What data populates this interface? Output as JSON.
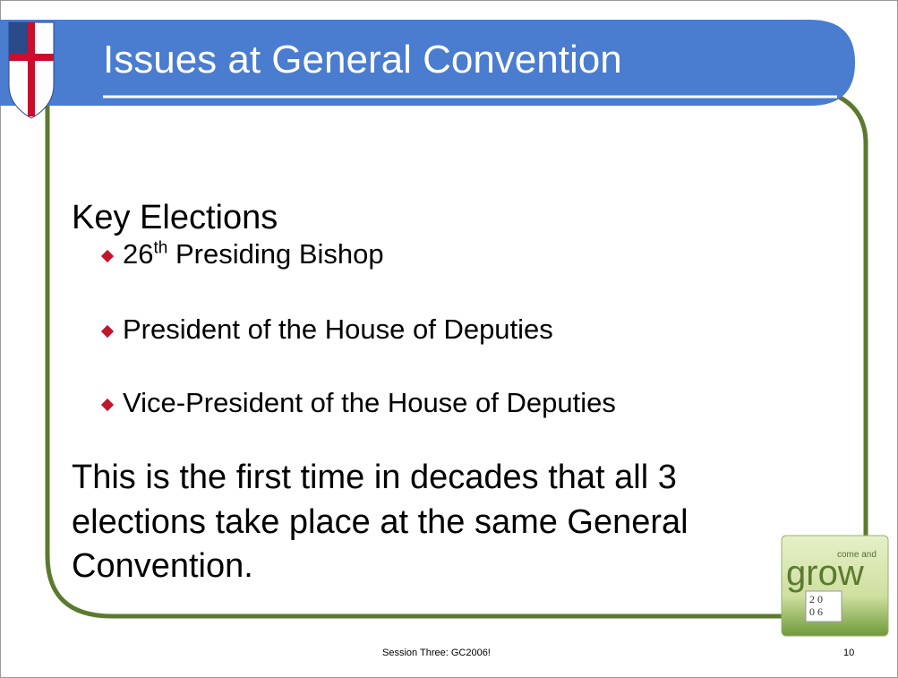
{
  "header": {
    "title": "Issues at General Convention"
  },
  "content": {
    "heading": "Key Elections",
    "bullets": [
      {
        "number": "26",
        "suffix": "th",
        "text": "Presiding Bishop"
      },
      {
        "text": "President of the House of Deputies"
      },
      {
        "text": "Vice-President of the House of Deputies"
      }
    ],
    "paragraph_lines": [
      "This is the first time in decades that all 3",
      "elections take place at the same General",
      "Convention."
    ]
  },
  "logo": {
    "small": "come and",
    "big": "grow",
    "digits": [
      "2",
      "0",
      "0",
      "6"
    ]
  },
  "footer": {
    "text": "Session Three: GC2006!",
    "slide_number": "10"
  }
}
